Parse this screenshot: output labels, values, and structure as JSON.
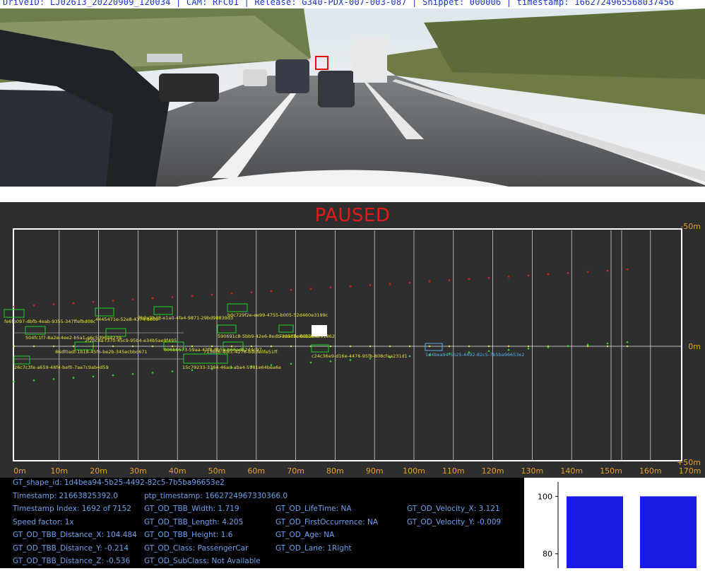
{
  "header": {
    "drive_label": "DriveID: LJ02613_20220909_120034 | CAM: RFC01 | Release: G340-PDX-007-003-087 | Snippet: 000006 | timestamp: 1662724965568037456"
  },
  "status": {
    "paused_label": "PAUSED"
  },
  "colors": {
    "accent_orange": "#e6a030",
    "paused_red": "#e41a1a",
    "info_text": "#6fa0ea",
    "bar_blue": "#1a1ae6",
    "box_green": "#22cc22",
    "selected_box": "#5aaee6"
  },
  "bev": {
    "y_labels": [
      "-50m",
      "0m",
      "+50m"
    ],
    "x_ticks": [
      "0m",
      "10m",
      "20m",
      "30m",
      "40m",
      "50m",
      "60m",
      "70m",
      "80m",
      "90m",
      "100m",
      "110m",
      "120m",
      "130m",
      "140m",
      "150m",
      "160m",
      "170m"
    ],
    "objects": [
      {
        "label": "fe6fb097-dbfb-4eab-9355-347ffefbd08c"
      },
      {
        "label": "4445471e-52e8-4374-ae0e-"
      },
      {
        "label": "3b9e9b48-e1a0-4fe4-9871-29bd98839d3"
      },
      {
        "label": "b0c729f2e-ee99-4755-b005-52d460e3199c"
      },
      {
        "label": "504fc1f7-8a2e-4ee2-b5a1-e6c5d96a4239"
      },
      {
        "label": "590691c8-5bb9-42e6-8edb-e0a0be8e57ef4"
      },
      {
        "label": "72a5c7c-05b28c891862"
      },
      {
        "label": "86df0adf-1b18-45f6-be2b-345ecbbd671"
      },
      {
        "label": "2f2bc8a-f370-45c9-95b4-e34b5ae9f495"
      },
      {
        "label": "806b6573-59aa-43f8-8b5a-b66ad52d4c97"
      },
      {
        "label": "7136c6-4dcc-4276-bdcfe0fe51ff"
      },
      {
        "label": "c24c36e9-d16e-4476-95fb-808cfea231d1"
      },
      {
        "label": "1d4bea94-5b25-4492-82c5-7b5ba96653e2"
      },
      {
        "label": "26c7c3fe-a659-48f4-bef0-7ae7c9ab4d59"
      },
      {
        "label": "15c79233-3384-46ad-aba4-5981e64bea6e"
      }
    ]
  },
  "info": {
    "shape_id": "GT_shape_id: 1d4bea94-5b25-4492-82c5-7b5ba96653e2",
    "timestamp": "Timestamp: 21663825392.0",
    "ptp_timestamp": "ptp_timestamp: 1662724967330366.0",
    "timestamp_index": "Timestamp Index: 1692 of 7152",
    "tbb_width": "GT_OD_TBB_Width: 1.719",
    "lifetime": "GT_OD_LifeTime: NA",
    "velocity_x": "GT_OD_Velocity_X: 3.121",
    "speed_factor": "Speed factor: 1x",
    "tbb_length": "GT_OD_TBB_Length: 4.205",
    "first_occurrence": "GT_OD_FirstOccurrence: NA",
    "velocity_y": "GT_OD_Velocity_Y: -0.009",
    "distance_x": "GT_OD_TBB_Distance_X: 104.484",
    "tbb_height": "GT_OD_TBB_Height: 1.6",
    "age": "GT_OD_Age: NA",
    "distance_y": "GT_OD_TBB_Distance_Y: -0.214",
    "od_class": "GT_OD_Class: PassengerCar",
    "lane": "GT_OD_Lane: 1Right",
    "distance_z": "GT_OD_TBB_Distance_Z: -0.536",
    "subclass": "GT_OD_SubClass: Not Available"
  },
  "chart_data": {
    "type": "bar",
    "categories": [
      "",
      ""
    ],
    "values": [
      100,
      100
    ],
    "title": "",
    "xlabel": "",
    "ylabel": "",
    "ylim": [
      75,
      105
    ],
    "yticks": [
      "100",
      "80"
    ]
  }
}
